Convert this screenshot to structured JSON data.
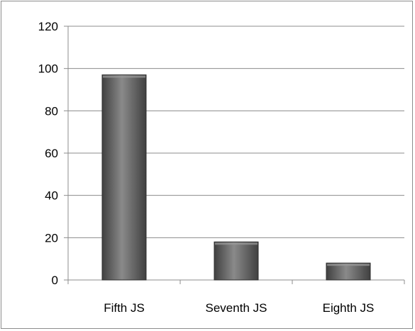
{
  "chart_data": {
    "type": "bar",
    "categories": [
      "Fifth JS",
      "Seventh JS",
      "Eighth JS"
    ],
    "values": [
      97,
      18,
      8
    ],
    "ylim": [
      0,
      120
    ],
    "yticks": [
      0,
      20,
      40,
      60,
      80,
      100,
      120
    ],
    "grid": true,
    "legend": "none",
    "colors": {
      "bar_dark": "#404040",
      "bar_light": "#8a8a8a",
      "grid": "#8c8c8c",
      "axis": "#8c8c8c"
    }
  }
}
